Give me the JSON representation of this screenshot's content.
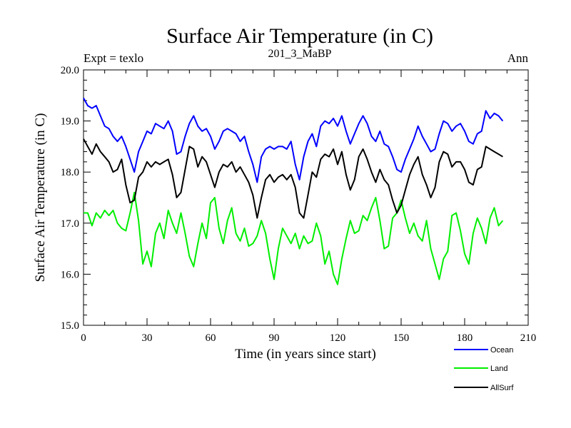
{
  "chart_data": {
    "type": "line",
    "title": "Surface Air Temperature (in C)",
    "subtitle": "201_3_MaBP",
    "left_label": "Expt = texlo",
    "right_label": "Ann",
    "xlabel": "Time (in years since start)",
    "ylabel": "Surface Air Temperature (in C)",
    "xlim": [
      0,
      210
    ],
    "ylim": [
      15.0,
      20.0
    ],
    "xticks": [
      0,
      30,
      60,
      90,
      120,
      150,
      180,
      210
    ],
    "xtick_labels": [
      "0",
      "30",
      "60",
      "90",
      "120",
      "150",
      "180",
      "210"
    ],
    "yticks": [
      15.0,
      16.0,
      17.0,
      18.0,
      19.0,
      20.0
    ],
    "ytick_labels": [
      "15.0",
      "16.0",
      "17.0",
      "18.0",
      "19.0",
      "20.0"
    ],
    "series": [
      {
        "name": "Ocean",
        "color": "#0000ff",
        "x": [
          0,
          2,
          4,
          6,
          8,
          10,
          12,
          14,
          16,
          18,
          20,
          22,
          24,
          26,
          28,
          30,
          32,
          34,
          36,
          38,
          40,
          42,
          44,
          46,
          48,
          50,
          52,
          54,
          56,
          58,
          60,
          62,
          64,
          66,
          68,
          70,
          72,
          74,
          76,
          78,
          80,
          82,
          84,
          86,
          88,
          90,
          92,
          94,
          96,
          98,
          100,
          102,
          104,
          106,
          108,
          110,
          112,
          114,
          116,
          118,
          120,
          122,
          124,
          126,
          128,
          130,
          132,
          134,
          136,
          138,
          140,
          142,
          144,
          146,
          148,
          150,
          152,
          154,
          156,
          158,
          160,
          162,
          164,
          166,
          168,
          170,
          172,
          174,
          176,
          178,
          180,
          182,
          184,
          186,
          188,
          190,
          192,
          194,
          196,
          198
        ],
        "values": [
          19.45,
          19.3,
          19.25,
          19.3,
          19.1,
          18.9,
          18.85,
          18.7,
          18.6,
          18.7,
          18.5,
          18.25,
          18.0,
          18.4,
          18.6,
          18.8,
          18.75,
          18.95,
          18.9,
          18.85,
          19.0,
          18.8,
          18.35,
          18.4,
          18.7,
          18.95,
          19.1,
          18.9,
          18.8,
          18.85,
          18.7,
          18.45,
          18.6,
          18.8,
          18.85,
          18.8,
          18.75,
          18.6,
          18.7,
          18.4,
          18.15,
          17.8,
          18.3,
          18.45,
          18.5,
          18.45,
          18.5,
          18.5,
          18.45,
          18.6,
          18.15,
          17.85,
          18.3,
          18.6,
          18.75,
          18.5,
          18.9,
          19.0,
          18.95,
          19.05,
          18.9,
          19.1,
          18.8,
          18.55,
          18.75,
          18.95,
          19.1,
          18.95,
          18.7,
          18.6,
          18.8,
          18.55,
          18.5,
          18.3,
          18.05,
          18.0,
          18.25,
          18.45,
          18.65,
          18.9,
          18.7,
          18.55,
          18.4,
          18.45,
          18.75,
          19.0,
          18.95,
          18.8,
          18.9,
          18.95,
          18.8,
          18.6,
          18.55,
          18.75,
          18.8,
          19.2,
          19.05,
          19.15,
          19.1,
          19.0
        ]
      },
      {
        "name": "Land",
        "color": "#00ee00",
        "x": [
          0,
          2,
          4,
          6,
          8,
          10,
          12,
          14,
          16,
          18,
          20,
          22,
          24,
          26,
          28,
          30,
          32,
          34,
          36,
          38,
          40,
          42,
          44,
          46,
          48,
          50,
          52,
          54,
          56,
          58,
          60,
          62,
          64,
          66,
          68,
          70,
          72,
          74,
          76,
          78,
          80,
          82,
          84,
          86,
          88,
          90,
          92,
          94,
          96,
          98,
          100,
          102,
          104,
          106,
          108,
          110,
          112,
          114,
          116,
          118,
          120,
          122,
          124,
          126,
          128,
          130,
          132,
          134,
          136,
          138,
          140,
          142,
          144,
          146,
          148,
          150,
          152,
          154,
          156,
          158,
          160,
          162,
          164,
          166,
          168,
          170,
          172,
          174,
          176,
          178,
          180,
          182,
          184,
          186,
          188,
          190,
          192,
          194,
          196,
          198
        ],
        "values": [
          17.2,
          17.2,
          16.95,
          17.2,
          17.1,
          17.25,
          17.15,
          17.25,
          17.0,
          16.9,
          16.85,
          17.2,
          17.6,
          17.05,
          16.2,
          16.45,
          16.15,
          16.8,
          17.0,
          16.7,
          17.25,
          17.0,
          16.8,
          17.2,
          16.8,
          16.35,
          16.15,
          16.6,
          17.0,
          16.7,
          17.4,
          17.5,
          16.9,
          16.6,
          17.05,
          17.3,
          16.8,
          16.65,
          16.9,
          16.55,
          16.6,
          16.75,
          17.05,
          16.8,
          16.3,
          15.9,
          16.5,
          16.9,
          16.75,
          16.6,
          16.8,
          16.5,
          16.75,
          16.6,
          16.65,
          17.0,
          16.75,
          16.2,
          16.45,
          16.0,
          15.8,
          16.3,
          16.7,
          17.05,
          16.8,
          16.85,
          17.15,
          17.05,
          17.3,
          17.5,
          17.05,
          16.5,
          16.55,
          17.1,
          17.2,
          17.45,
          17.1,
          16.8,
          17.0,
          16.75,
          16.65,
          17.05,
          16.5,
          16.2,
          15.9,
          16.3,
          16.45,
          17.15,
          17.2,
          16.85,
          16.4,
          16.2,
          16.8,
          17.1,
          16.9,
          16.6,
          17.1,
          17.3,
          16.95,
          17.05
        ]
      },
      {
        "name": "AllSurf",
        "color": "#000000",
        "x": [
          0,
          2,
          4,
          6,
          8,
          10,
          12,
          14,
          16,
          18,
          20,
          22,
          24,
          26,
          28,
          30,
          32,
          34,
          36,
          38,
          40,
          42,
          44,
          46,
          48,
          50,
          52,
          54,
          56,
          58,
          60,
          62,
          64,
          66,
          68,
          70,
          72,
          74,
          76,
          78,
          80,
          82,
          84,
          86,
          88,
          90,
          92,
          94,
          96,
          98,
          100,
          102,
          104,
          106,
          108,
          110,
          112,
          114,
          116,
          118,
          120,
          122,
          124,
          126,
          128,
          130,
          132,
          134,
          136,
          138,
          140,
          142,
          144,
          146,
          148,
          150,
          152,
          154,
          156,
          158,
          160,
          162,
          164,
          166,
          168,
          170,
          172,
          174,
          176,
          178,
          180,
          182,
          184,
          186,
          188,
          190,
          192,
          194,
          196,
          198
        ],
        "values": [
          18.65,
          18.5,
          18.35,
          18.55,
          18.4,
          18.3,
          18.2,
          18.0,
          18.05,
          18.25,
          17.75,
          17.4,
          17.45,
          17.9,
          18.0,
          18.2,
          18.1,
          18.2,
          18.15,
          18.2,
          18.25,
          17.95,
          17.5,
          17.6,
          18.05,
          18.5,
          18.45,
          18.1,
          18.3,
          18.2,
          17.95,
          17.7,
          18.0,
          18.15,
          18.1,
          18.2,
          18.0,
          18.1,
          17.95,
          17.8,
          17.55,
          17.1,
          17.5,
          17.85,
          17.95,
          17.8,
          17.9,
          17.95,
          17.85,
          17.95,
          17.7,
          17.2,
          17.1,
          17.55,
          18.0,
          17.9,
          18.25,
          18.35,
          18.3,
          18.45,
          18.15,
          18.4,
          17.95,
          17.65,
          17.85,
          18.3,
          18.45,
          18.25,
          18.0,
          17.8,
          18.05,
          17.85,
          17.75,
          17.45,
          17.2,
          17.35,
          17.65,
          17.95,
          18.15,
          18.3,
          17.95,
          17.75,
          17.5,
          17.7,
          18.2,
          18.4,
          18.35,
          18.1,
          18.2,
          18.2,
          18.05,
          17.8,
          17.75,
          18.05,
          18.1,
          18.5,
          18.45,
          18.4,
          18.35,
          18.3
        ]
      }
    ],
    "legend_position": "bottom-right"
  }
}
